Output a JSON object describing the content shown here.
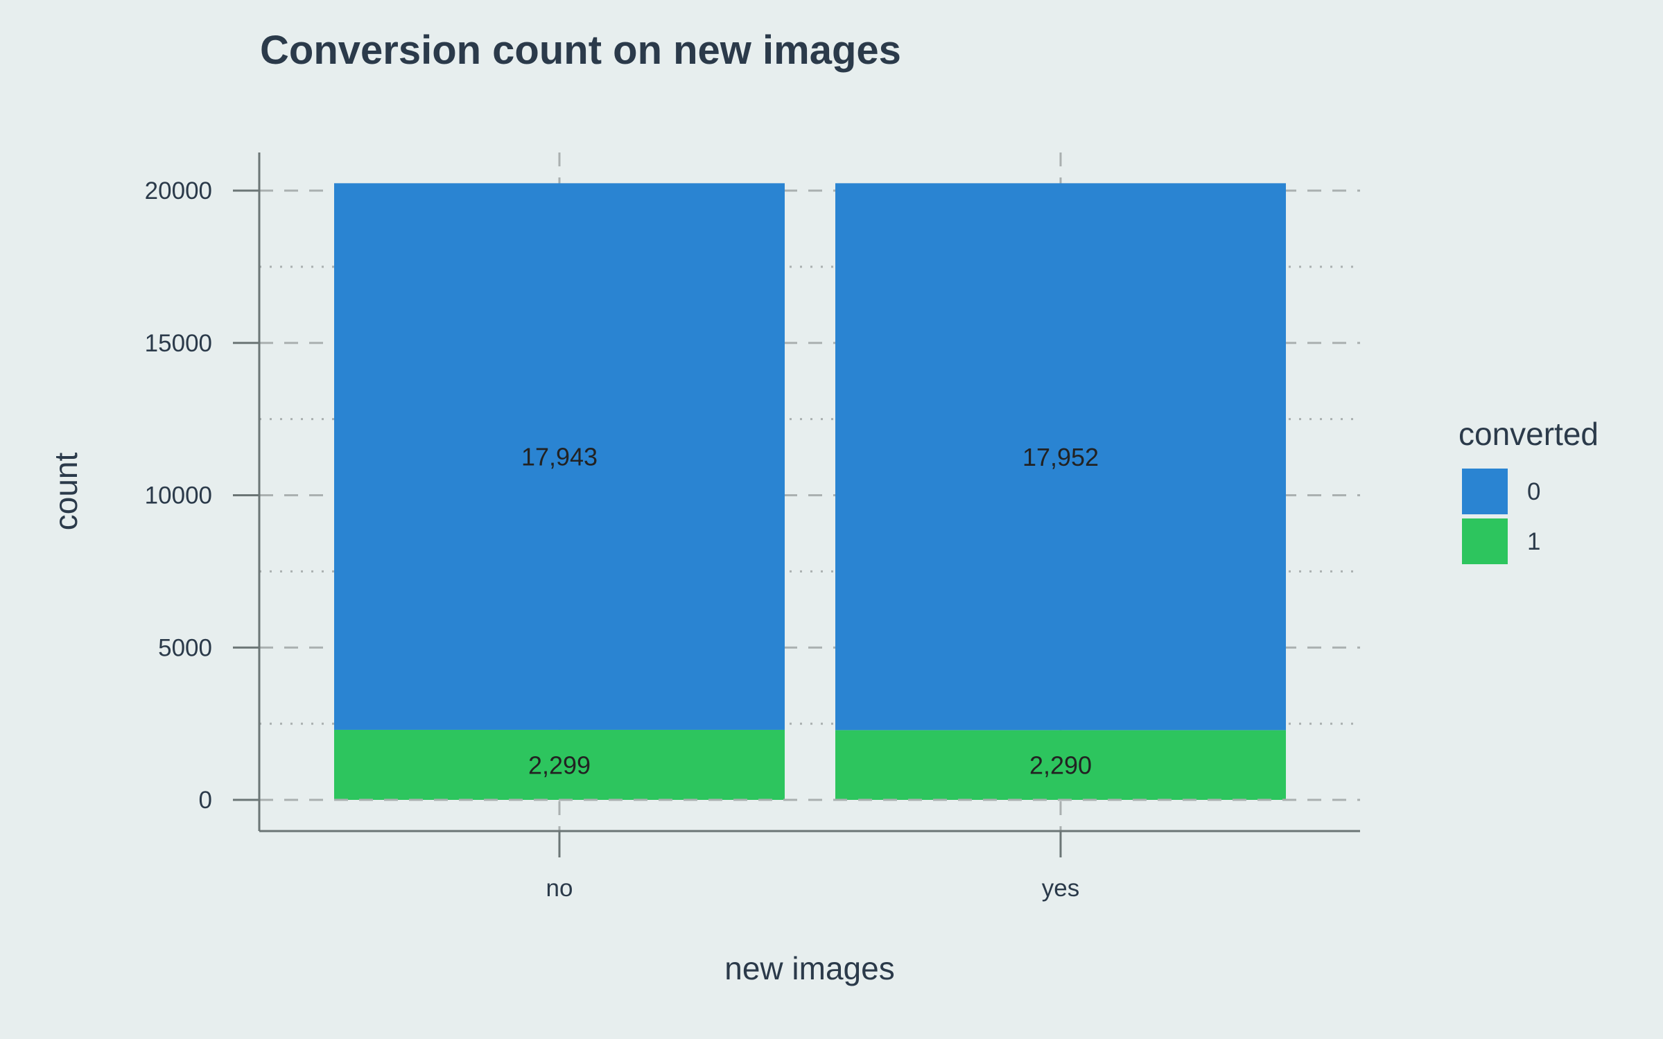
{
  "chart_data": {
    "type": "bar",
    "stacked": true,
    "title": "Conversion count on new images",
    "xlabel": "new images",
    "ylabel": "count",
    "categories": [
      "no",
      "yes"
    ],
    "ylim": [
      0,
      21000
    ],
    "y_ticks": [
      0,
      5000,
      10000,
      15000,
      20000
    ],
    "grid": true,
    "legend": {
      "title": "converted",
      "placement": "right"
    },
    "series": [
      {
        "name": "1",
        "values": [
          2299,
          2290
        ],
        "labels": [
          "2,299",
          "2,290"
        ],
        "color": "#2dc55e"
      },
      {
        "name": "0",
        "values": [
          17943,
          17952
        ],
        "labels": [
          "17,943",
          "17,952"
        ],
        "color": "#2a84d2"
      }
    ]
  }
}
